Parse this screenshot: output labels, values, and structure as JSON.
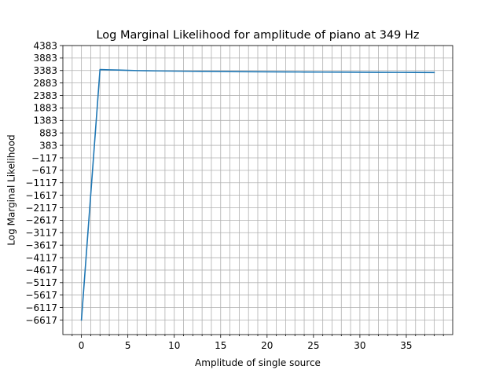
{
  "chart_data": {
    "type": "line",
    "title": "Log Marginal Likelihood for amplitude of piano at 349 Hz",
    "xlabel": "Amplitude of single source",
    "ylabel": "Log Marginal Likelihood",
    "xlim": [
      -2,
      40
    ],
    "ylim": [
      -7200,
      4383
    ],
    "x_ticks": [
      0,
      5,
      10,
      15,
      20,
      25,
      30,
      35
    ],
    "x_tick_labels": [
      "0",
      "5",
      "10",
      "15",
      "20",
      "25",
      "30",
      "35"
    ],
    "x_minor_ticks": [
      -1,
      1,
      2,
      3,
      4,
      6,
      7,
      8,
      9,
      11,
      12,
      13,
      14,
      16,
      17,
      18,
      19,
      21,
      22,
      23,
      24,
      26,
      27,
      28,
      29,
      31,
      32,
      33,
      34,
      36,
      37,
      38,
      39
    ],
    "y_ticks": [
      4383,
      3883,
      3383,
      2883,
      2383,
      1883,
      1383,
      883,
      383,
      -117,
      -617,
      -1117,
      -1617,
      -2117,
      -2617,
      -3117,
      -3617,
      -4117,
      -4617,
      -5117,
      -5617,
      -6117,
      -6617
    ],
    "y_tick_labels": [
      "4383",
      "3883",
      "3383",
      "2883",
      "2383",
      "1883",
      "1383",
      "883",
      "383",
      "−117",
      "−617",
      "−1117",
      "−1617",
      "−2117",
      "−2617",
      "−3117",
      "−3617",
      "−4117",
      "−4617",
      "−5117",
      "−5617",
      "−6117",
      "−6617"
    ],
    "grid": true,
    "series": [
      {
        "color": "#1f77b4",
        "x": [
          0,
          2,
          3,
          4,
          5,
          6,
          7,
          8,
          10,
          12,
          14,
          16,
          18,
          20,
          22,
          24,
          26,
          28,
          30,
          32,
          34,
          36,
          38
        ],
        "y": [
          -6617,
          3420,
          3410,
          3400,
          3390,
          3380,
          3375,
          3368,
          3360,
          3352,
          3345,
          3340,
          3335,
          3330,
          3327,
          3324,
          3321,
          3318,
          3315,
          3312,
          3309,
          3306,
          3302
        ]
      }
    ]
  }
}
